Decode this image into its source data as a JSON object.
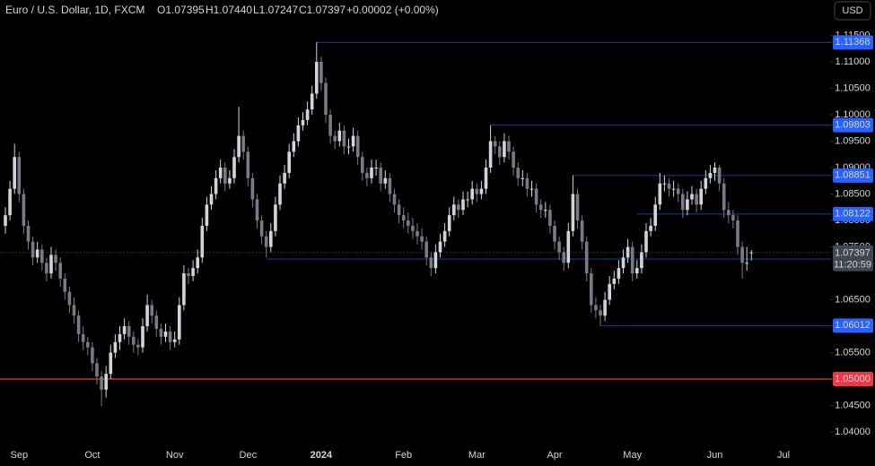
{
  "chart_data": {
    "type": "candlestick",
    "legend": {
      "symbol": "Euro / U.S. Dollar, 1D, FXCM",
      "open": "O1.07395",
      "high": "H1.07440",
      "low": "L1.07247",
      "close": "C1.07397",
      "change": "+0.00002 (+0.00%)"
    },
    "currency": "USD",
    "countdown": "11:20:59",
    "up_color": "#d1d4dc",
    "down_color": "#787b86",
    "ylim": [
      1.0378,
      1.1217
    ],
    "yticks": [
      {
        "value": 1.115,
        "label": "1.11500"
      },
      {
        "value": 1.11,
        "label": "1.11000"
      },
      {
        "value": 1.105,
        "label": "1.10500"
      },
      {
        "value": 1.1,
        "label": "1.10000"
      },
      {
        "value": 1.095,
        "label": "1.09500"
      },
      {
        "value": 1.09,
        "label": "1.09000"
      },
      {
        "value": 1.085,
        "label": "1.08500"
      },
      {
        "value": 1.08,
        "label": "1.08000"
      },
      {
        "value": 1.075,
        "label": "1.07500"
      },
      {
        "value": 1.065,
        "label": "1.06500"
      },
      {
        "value": 1.055,
        "label": "1.05500"
      },
      {
        "value": 1.045,
        "label": "1.04500"
      },
      {
        "value": 1.04,
        "label": "1.04000"
      }
    ],
    "levels": [
      1.11368,
      1.09803,
      1.08851,
      1.08122,
      1.07271,
      1.06012
    ],
    "level_color": "#2962ff",
    "key_level": {
      "value": 1.05,
      "label": "1.05000",
      "color": "#f23645"
    },
    "categories": [
      null,
      null,
      null,
      "Sep",
      null,
      null,
      null,
      null,
      null,
      null,
      null,
      null,
      null,
      null,
      null,
      null,
      null,
      null,
      null,
      "Oct",
      null,
      null,
      null,
      null,
      null,
      null,
      null,
      null,
      null,
      null,
      null,
      null,
      null,
      null,
      null,
      null,
      null,
      "Nov",
      null,
      null,
      null,
      null,
      null,
      null,
      null,
      null,
      null,
      null,
      null,
      null,
      null,
      null,
      null,
      "Dec",
      null,
      null,
      null,
      null,
      null,
      null,
      null,
      null,
      null,
      null,
      null,
      null,
      null,
      null,
      null,
      "2024",
      null,
      null,
      null,
      null,
      null,
      null,
      null,
      null,
      null,
      null,
      null,
      null,
      null,
      null,
      null,
      null,
      null,
      "Feb",
      null,
      null,
      null,
      null,
      null,
      null,
      null,
      null,
      null,
      null,
      null,
      null,
      null,
      null,
      null,
      "Mar",
      null,
      null,
      null,
      null,
      null,
      null,
      null,
      null,
      null,
      null,
      null,
      null,
      null,
      null,
      null,
      null,
      "Apr",
      null,
      null,
      null,
      null,
      null,
      null,
      null,
      null,
      null,
      null,
      null,
      null,
      null,
      null,
      null,
      null,
      "May",
      null,
      null,
      null,
      null,
      null,
      null,
      null,
      null,
      null,
      null,
      null,
      null,
      null,
      null,
      null,
      null,
      null,
      "Jun",
      null,
      null,
      null,
      null,
      null,
      null,
      null,
      null,
      null,
      null,
      null,
      null,
      null,
      null,
      "Jul"
    ],
    "candles": [
      [
        1.079,
        1.0825,
        1.0775,
        1.081
      ],
      [
        1.081,
        1.0875,
        1.08,
        1.086
      ],
      [
        1.086,
        1.0945,
        1.085,
        1.092
      ],
      [
        1.092,
        1.093,
        1.0835,
        1.085
      ],
      [
        1.085,
        1.086,
        1.0775,
        1.079
      ],
      [
        1.079,
        1.08,
        1.0745,
        1.076
      ],
      [
        1.076,
        1.077,
        1.0715,
        1.073
      ],
      [
        1.073,
        1.076,
        1.072,
        1.0745
      ],
      [
        1.0745,
        1.0755,
        1.0705,
        1.072
      ],
      [
        1.072,
        1.073,
        1.0685,
        1.07
      ],
      [
        1.07,
        1.075,
        1.069,
        1.0735
      ],
      [
        1.0735,
        1.0745,
        1.0705,
        1.072
      ],
      [
        1.072,
        1.073,
        1.0675,
        1.069
      ],
      [
        1.069,
        1.07,
        1.065,
        1.0665
      ],
      [
        1.0665,
        1.0675,
        1.0625,
        1.064
      ],
      [
        1.064,
        1.0655,
        1.0605,
        1.062
      ],
      [
        1.062,
        1.063,
        1.057,
        1.0585
      ],
      [
        1.0585,
        1.06,
        1.0555,
        1.057
      ],
      [
        1.057,
        1.058,
        1.0545,
        1.056
      ],
      [
        1.056,
        1.057,
        1.0515,
        1.053
      ],
      [
        1.053,
        1.054,
        1.049,
        1.0505
      ],
      [
        1.0505,
        1.0515,
        1.0449,
        1.048
      ],
      [
        1.048,
        1.0525,
        1.0465,
        1.051
      ],
      [
        1.051,
        1.0565,
        1.05,
        1.055
      ],
      [
        1.055,
        1.0585,
        1.054,
        1.057
      ],
      [
        1.057,
        1.06,
        1.0555,
        1.0585
      ],
      [
        1.0585,
        1.0615,
        1.0575,
        1.06
      ],
      [
        1.06,
        1.061,
        1.0565,
        1.058
      ],
      [
        1.058,
        1.059,
        1.055,
        1.0565
      ],
      [
        1.0565,
        1.0575,
        1.0545,
        1.056
      ],
      [
        1.056,
        1.0615,
        1.055,
        1.06
      ],
      [
        1.06,
        1.066,
        1.059,
        1.064
      ],
      [
        1.064,
        1.065,
        1.0605,
        1.062
      ],
      [
        1.062,
        1.063,
        1.058,
        1.0595
      ],
      [
        1.0595,
        1.0605,
        1.0565,
        1.058
      ],
      [
        1.058,
        1.0605,
        1.057,
        1.059
      ],
      [
        1.059,
        1.06,
        1.0555,
        1.057
      ],
      [
        1.057,
        1.059,
        1.056,
        1.0575
      ],
      [
        1.0575,
        1.0655,
        1.0565,
        1.064
      ],
      [
        1.064,
        1.0715,
        1.063,
        1.07
      ],
      [
        1.07,
        1.071,
        1.068,
        1.0695
      ],
      [
        1.0695,
        1.0725,
        1.0685,
        1.071
      ],
      [
        1.071,
        1.0745,
        1.07,
        1.073
      ],
      [
        1.073,
        1.0805,
        1.072,
        1.079
      ],
      [
        1.079,
        1.0845,
        1.078,
        1.083
      ],
      [
        1.083,
        1.0865,
        1.082,
        1.085
      ],
      [
        1.085,
        1.0895,
        1.084,
        1.088
      ],
      [
        1.088,
        1.0915,
        1.087,
        1.09
      ],
      [
        1.09,
        1.091,
        1.0855,
        1.087
      ],
      [
        1.087,
        1.0895,
        1.086,
        1.088
      ],
      [
        1.088,
        1.0935,
        1.087,
        1.092
      ],
      [
        1.092,
        1.1015,
        1.091,
        1.096
      ],
      [
        1.096,
        1.097,
        1.0915,
        1.093
      ],
      [
        1.093,
        1.094,
        1.0865,
        1.088
      ],
      [
        1.088,
        1.089,
        1.0825,
        1.084
      ],
      [
        1.084,
        1.085,
        1.0785,
        1.08
      ],
      [
        1.08,
        1.081,
        1.0755,
        1.077
      ],
      [
        1.077,
        1.078,
        1.073,
        1.075
      ],
      [
        1.075,
        1.0795,
        1.074,
        1.078
      ],
      [
        1.078,
        1.0845,
        1.077,
        1.083
      ],
      [
        1.083,
        1.0885,
        1.082,
        1.087
      ],
      [
        1.087,
        1.0905,
        1.086,
        1.089
      ],
      [
        1.089,
        1.0945,
        1.088,
        1.093
      ],
      [
        1.093,
        1.0965,
        1.092,
        1.095
      ],
      [
        1.095,
        1.0995,
        1.094,
        1.098
      ],
      [
        1.098,
        1.1005,
        1.097,
        1.099
      ],
      [
        1.099,
        1.1025,
        1.098,
        1.101
      ],
      [
        1.101,
        1.1055,
        1.1,
        1.104
      ],
      [
        1.104,
        1.1137,
        1.103,
        1.11
      ],
      [
        1.11,
        1.111,
        1.1045,
        1.106
      ],
      [
        1.106,
        1.107,
        1.0985,
        1.1
      ],
      [
        1.1,
        1.101,
        1.0945,
        1.096
      ],
      [
        1.096,
        1.097,
        1.0935,
        1.095
      ],
      [
        1.095,
        1.0985,
        1.094,
        1.097
      ],
      [
        1.097,
        1.098,
        1.0925,
        1.094
      ],
      [
        1.094,
        1.0955,
        1.0925,
        1.094
      ],
      [
        1.094,
        1.0975,
        1.093,
        1.096
      ],
      [
        1.096,
        1.097,
        1.0905,
        1.092
      ],
      [
        1.092,
        1.093,
        1.0875,
        1.089
      ],
      [
        1.089,
        1.09,
        1.0865,
        1.088
      ],
      [
        1.088,
        1.0915,
        1.087,
        1.09
      ],
      [
        1.09,
        1.0915,
        1.0885,
        1.09
      ],
      [
        1.09,
        1.091,
        1.0855,
        1.087
      ],
      [
        1.087,
        1.0895,
        1.086,
        1.088
      ],
      [
        1.088,
        1.089,
        1.0835,
        1.085
      ],
      [
        1.085,
        1.086,
        1.0815,
        1.083
      ],
      [
        1.083,
        1.084,
        1.0795,
        1.081
      ],
      [
        1.081,
        1.0825,
        1.0785,
        1.08
      ],
      [
        1.08,
        1.0815,
        1.0775,
        1.079
      ],
      [
        1.079,
        1.0805,
        1.0765,
        1.078
      ],
      [
        1.078,
        1.0795,
        1.0755,
        1.077
      ],
      [
        1.077,
        1.0785,
        1.0745,
        1.076
      ],
      [
        1.076,
        1.077,
        1.0715,
        1.073
      ],
      [
        1.073,
        1.074,
        1.0695,
        1.071
      ],
      [
        1.071,
        1.0755,
        1.07,
        1.074
      ],
      [
        1.074,
        1.0775,
        1.073,
        1.076
      ],
      [
        1.076,
        1.0795,
        1.075,
        1.078
      ],
      [
        1.078,
        1.0825,
        1.077,
        1.081
      ],
      [
        1.081,
        1.0845,
        1.08,
        1.083
      ],
      [
        1.083,
        1.084,
        1.0805,
        1.082
      ],
      [
        1.082,
        1.0855,
        1.081,
        1.084
      ],
      [
        1.084,
        1.0855,
        1.0825,
        1.084
      ],
      [
        1.084,
        1.0875,
        1.083,
        1.086
      ],
      [
        1.086,
        1.087,
        1.0835,
        1.085
      ],
      [
        1.085,
        1.0875,
        1.084,
        1.086
      ],
      [
        1.086,
        1.0915,
        1.085,
        1.09
      ],
      [
        1.09,
        1.098,
        1.089,
        1.095
      ],
      [
        1.095,
        1.096,
        1.0925,
        1.094
      ],
      [
        1.094,
        1.095,
        1.0905,
        1.092
      ],
      [
        1.092,
        1.0965,
        1.091,
        1.095
      ],
      [
        1.095,
        1.096,
        1.0915,
        1.093
      ],
      [
        1.093,
        1.094,
        1.0885,
        1.09
      ],
      [
        1.09,
        1.091,
        1.0865,
        1.088
      ],
      [
        1.088,
        1.0895,
        1.0865,
        1.088
      ],
      [
        1.088,
        1.089,
        1.0845,
        1.086
      ],
      [
        1.086,
        1.0875,
        1.0845,
        1.086
      ],
      [
        1.086,
        1.087,
        1.0815,
        1.083
      ],
      [
        1.083,
        1.084,
        1.0805,
        1.082
      ],
      [
        1.082,
        1.0835,
        1.0805,
        1.082
      ],
      [
        1.082,
        1.083,
        1.0775,
        1.079
      ],
      [
        1.079,
        1.08,
        1.0745,
        1.076
      ],
      [
        1.076,
        1.077,
        1.0725,
        1.074
      ],
      [
        1.074,
        1.075,
        1.0705,
        1.072
      ],
      [
        1.072,
        1.0795,
        1.071,
        1.078
      ],
      [
        1.078,
        1.0885,
        1.077,
        1.085
      ],
      [
        1.085,
        1.086,
        1.0785,
        1.08
      ],
      [
        1.08,
        1.081,
        1.0745,
        1.076
      ],
      [
        1.076,
        1.077,
        1.0685,
        1.07
      ],
      [
        1.07,
        1.071,
        1.0625,
        1.064
      ],
      [
        1.064,
        1.0655,
        1.0615,
        1.063
      ],
      [
        1.063,
        1.064,
        1.0601,
        1.062
      ],
      [
        1.062,
        1.0665,
        1.061,
        1.065
      ],
      [
        1.065,
        1.0695,
        1.064,
        1.068
      ],
      [
        1.068,
        1.0705,
        1.067,
        1.069
      ],
      [
        1.069,
        1.0725,
        1.068,
        1.071
      ],
      [
        1.071,
        1.0745,
        1.07,
        1.073
      ],
      [
        1.073,
        1.0765,
        1.072,
        1.075
      ],
      [
        1.075,
        1.076,
        1.0685,
        1.07
      ],
      [
        1.07,
        1.0725,
        1.069,
        1.071
      ],
      [
        1.071,
        1.0755,
        1.07,
        1.074
      ],
      [
        1.074,
        1.0795,
        1.073,
        1.078
      ],
      [
        1.078,
        1.0805,
        1.077,
        1.079
      ],
      [
        1.079,
        1.0845,
        1.078,
        1.083
      ],
      [
        1.083,
        1.089,
        1.082,
        1.087
      ],
      [
        1.087,
        1.0885,
        1.0855,
        1.087
      ],
      [
        1.087,
        1.088,
        1.0845,
        1.086
      ],
      [
        1.086,
        1.0875,
        1.0845,
        1.086
      ],
      [
        1.086,
        1.087,
        1.0835,
        1.085
      ],
      [
        1.085,
        1.086,
        1.0805,
        1.082
      ],
      [
        1.082,
        1.0855,
        1.081,
        1.084
      ],
      [
        1.084,
        1.0865,
        1.083,
        1.085
      ],
      [
        1.085,
        1.086,
        1.0815,
        1.083
      ],
      [
        1.083,
        1.0875,
        1.082,
        1.086
      ],
      [
        1.086,
        1.0895,
        1.085,
        1.088
      ],
      [
        1.088,
        1.0905,
        1.087,
        1.089
      ],
      [
        1.089,
        1.091,
        1.0875,
        1.09
      ],
      [
        1.09,
        1.0905,
        1.0855,
        1.087
      ],
      [
        1.087,
        1.088,
        1.0805,
        1.082
      ],
      [
        1.082,
        1.0835,
        1.0795,
        1.081
      ],
      [
        1.081,
        1.082,
        1.0785,
        1.08
      ],
      [
        1.08,
        1.081,
        1.0735,
        1.075
      ],
      [
        1.075,
        1.076,
        1.069,
        1.072
      ],
      [
        1.072,
        1.075,
        1.0705,
        1.072
      ],
      [
        1.07395,
        1.0744,
        1.07247,
        1.07397
      ],
      null,
      null,
      null,
      null,
      null,
      null,
      null
    ]
  }
}
